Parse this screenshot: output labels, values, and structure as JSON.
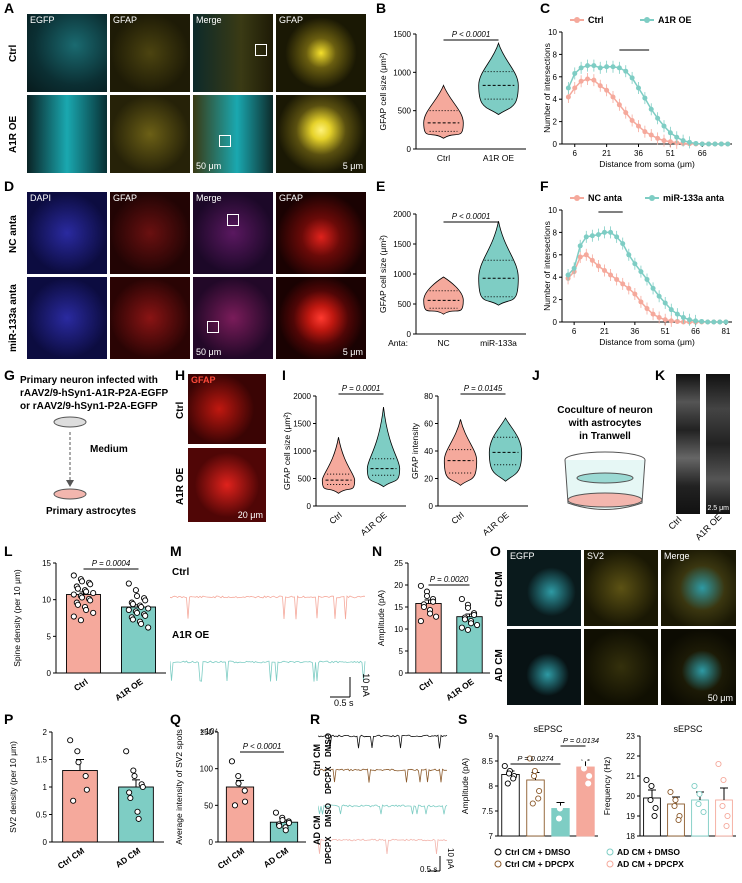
{
  "panels": {
    "A": "A",
    "B": "B",
    "C": "C",
    "D": "D",
    "E": "E",
    "F": "F",
    "G": "G",
    "H": "H",
    "I": "I",
    "J": "J",
    "K": "K",
    "L": "L",
    "M": "M",
    "N": "N",
    "O": "O",
    "P": "P",
    "Q": "Q",
    "R": "R",
    "S": "S"
  },
  "A": {
    "cols": [
      "EGFP",
      "GFAP",
      "Merge",
      "GFAP"
    ],
    "rows": [
      "Ctrl",
      "A1R OE"
    ],
    "scale1": "50 μm",
    "scale2": "5 μm"
  },
  "D": {
    "cols": [
      "DAPI",
      "GFAP",
      "Merge",
      "GFAP"
    ],
    "rows": [
      "NC anta",
      "miR-133a anta"
    ],
    "scale1": "50 μm",
    "scale2": "5 μm"
  },
  "G": {
    "line1": "Primary neuron infected with",
    "line2": "rAAV2/9-hSyn1-A1R-P2A-EGFP",
    "line3": "or rAAV2/9-hSyn1-P2A-EGFP",
    "medium": "Medium",
    "bottom": "Primary astrocytes"
  },
  "H": {
    "label": "GFAP",
    "rows": [
      "Ctrl",
      "A1R OE"
    ],
    "scale": "20 μm"
  },
  "J": {
    "line1": "Coculture of neuron",
    "line2": "with astrocytes",
    "line3": "in Tranwell"
  },
  "K": {
    "labels": [
      "Ctrl",
      "A1R OE"
    ],
    "scale": "2.5 μm"
  },
  "M": {
    "traces": [
      "Ctrl",
      "A1R OE"
    ],
    "scale_t": "0.5 s",
    "scale_a": "10 pA"
  },
  "O": {
    "cols": [
      "EGFP",
      "SV2",
      "Merge"
    ],
    "rows": [
      "Ctrl CM",
      "AD CM"
    ],
    "scale": "50 μm"
  },
  "R": {
    "groups": [
      "Ctrl CM",
      "AD CM"
    ],
    "traces": [
      "DMSO",
      "DPCPX",
      "DMSO",
      "DPCPX"
    ],
    "scale_t": "0.5 s",
    "scale_a": "10 pA"
  },
  "colors": {
    "ctrl": "#f5a99c",
    "oe": "#7ecdc4",
    "egfp": "#3ec9d6",
    "gfap_y": "#e6d22a",
    "gfap_r": "#e0221c",
    "dapi": "#2233cc",
    "brown": "#8b5a2b",
    "black": "#111111"
  },
  "chart_data": [
    {
      "id": "B",
      "type": "violin",
      "ylabel": "GFAP cell size (μm²)",
      "categories": [
        "Ctrl",
        "A1R OE"
      ],
      "ylim": [
        0,
        1500
      ],
      "yticks": [
        0,
        500,
        1000,
        1500
      ],
      "pvalue": "P < 0.0001",
      "medians": [
        340,
        830
      ],
      "q1": [
        230,
        650
      ],
      "q3": [
        500,
        1010
      ],
      "min": [
        140,
        450
      ],
      "max": [
        830,
        1380
      ]
    },
    {
      "id": "C",
      "type": "line",
      "xlabel": "Distance from soma (μm)",
      "ylabel": "Number of intersections",
      "xticks": [
        6,
        21,
        36,
        51,
        66
      ],
      "ylim": [
        0,
        10
      ],
      "yticks": [
        0,
        2,
        4,
        6,
        8,
        10
      ],
      "x": [
        3,
        6,
        9,
        12,
        15,
        18,
        21,
        24,
        27,
        30,
        33,
        36,
        39,
        42,
        45,
        48,
        51,
        54,
        57,
        60,
        63,
        66,
        69,
        72,
        75,
        78
      ],
      "series": [
        {
          "name": "Ctrl",
          "values": [
            4.2,
            5.0,
            5.6,
            5.8,
            5.7,
            5.2,
            4.8,
            4.2,
            3.5,
            2.8,
            2.1,
            1.6,
            1.1,
            0.8,
            0.5,
            0.3,
            0.2,
            0.1,
            0.05,
            0.02,
            0,
            0,
            0,
            0,
            0,
            0
          ]
        },
        {
          "name": "A1R OE",
          "values": [
            5.0,
            6.3,
            6.8,
            7.0,
            7.0,
            6.8,
            6.9,
            6.9,
            6.8,
            6.5,
            5.9,
            5.0,
            4.1,
            3.1,
            2.3,
            1.6,
            1.0,
            0.6,
            0.3,
            0.15,
            0.05,
            0,
            0,
            0,
            0,
            0
          ]
        }
      ]
    },
    {
      "id": "E",
      "type": "violin",
      "ylabel": "GFAP cell size (μm²)",
      "xlabel_prefix": "Anta:",
      "categories": [
        "NC",
        "miR-133a"
      ],
      "ylim": [
        0,
        2000
      ],
      "yticks": [
        0,
        500,
        1000,
        1500,
        2000
      ],
      "pvalue": "P < 0.0001",
      "medians": [
        560,
        930
      ],
      "q1": [
        430,
        620
      ],
      "q3": [
        720,
        1230
      ],
      "min": [
        330,
        480
      ],
      "max": [
        950,
        1880
      ]
    },
    {
      "id": "F",
      "type": "line",
      "xlabel": "Distance from soma (μm)",
      "ylabel": "Number of intersections",
      "xticks": [
        6,
        21,
        36,
        51,
        66,
        81
      ],
      "ylim": [
        0,
        10
      ],
      "yticks": [
        0,
        2,
        4,
        6,
        8,
        10
      ],
      "x": [
        3,
        6,
        9,
        12,
        15,
        18,
        21,
        24,
        27,
        30,
        33,
        36,
        39,
        42,
        45,
        48,
        51,
        54,
        57,
        60,
        63,
        66,
        69,
        72,
        75,
        78,
        81
      ],
      "series": [
        {
          "name": "NC anta",
          "values": [
            3.9,
            4.5,
            5.8,
            6.0,
            5.5,
            5.0,
            4.6,
            4.2,
            3.8,
            3.4,
            3.0,
            2.5,
            1.8,
            1.2,
            0.7,
            0.4,
            0.2,
            0.1,
            0.05,
            0,
            0,
            0,
            0,
            0,
            0,
            0,
            0
          ]
        },
        {
          "name": "miR-133a anta",
          "values": [
            4.2,
            4.8,
            6.8,
            7.6,
            7.7,
            7.8,
            8.0,
            8.0,
            7.6,
            7.0,
            6.0,
            5.2,
            4.5,
            3.8,
            3.0,
            2.3,
            1.7,
            1.1,
            0.7,
            0.4,
            0.2,
            0.1,
            0.05,
            0,
            0,
            0,
            0
          ]
        }
      ]
    },
    {
      "id": "I1",
      "type": "violin",
      "ylabel": "GFAP cell size (μm²)",
      "categories": [
        "Ctrl",
        "A1R OE"
      ],
      "ylim": [
        0,
        2000
      ],
      "yticks": [
        0,
        500,
        1000,
        1500,
        2000
      ],
      "pvalue": "P = 0.0001",
      "medians": [
        470,
        680
      ],
      "q1": [
        390,
        560
      ],
      "q3": [
        580,
        860
      ],
      "min": [
        230,
        350
      ],
      "max": [
        1250,
        1800
      ]
    },
    {
      "id": "I2",
      "type": "violin",
      "ylabel": "GFAP intensity",
      "categories": [
        "Ctrl",
        "A1R OE"
      ],
      "ylim": [
        0,
        80
      ],
      "yticks": [
        0,
        20,
        40,
        60,
        80
      ],
      "pvalue": "P = 0.0145",
      "medians": [
        33,
        39
      ],
      "q1": [
        24,
        30
      ],
      "q3": [
        41,
        50
      ],
      "min": [
        15,
        18
      ],
      "max": [
        63,
        64
      ]
    },
    {
      "id": "L",
      "type": "bar",
      "ylabel": "Spine density (per 10 μm)",
      "categories": [
        "Ctrl",
        "A1R OE"
      ],
      "values": [
        10.7,
        9.0
      ],
      "sem": [
        0.35,
        0.3
      ],
      "ylim": [
        0,
        15
      ],
      "yticks": [
        0,
        5,
        10,
        15
      ],
      "pvalue": "P = 0.0004",
      "points": [
        [
          13.3,
          12.8,
          12.5,
          12.3,
          12.1,
          11.8,
          11.5,
          11.3,
          11.1,
          10.9,
          10.7,
          10.5,
          10.3,
          10.1,
          9.9,
          9.6,
          9.3,
          9.0,
          8.6,
          8.2,
          7.7,
          7.2
        ],
        [
          12.2,
          11.3,
          10.5,
          10.2,
          9.9,
          9.6,
          9.4,
          9.2,
          9.0,
          8.8,
          8.6,
          8.4,
          8.2,
          8.0,
          7.8,
          7.6,
          7.3,
          7.0,
          6.7,
          6.2
        ]
      ]
    },
    {
      "id": "N",
      "type": "bar",
      "ylabel": "Amplitude (pA)",
      "categories": [
        "Ctrl",
        "A1R OE"
      ],
      "values": [
        15.8,
        12.8
      ],
      "sem": [
        0.8,
        0.6
      ],
      "ylim": [
        0,
        25
      ],
      "yticks": [
        0,
        5,
        10,
        15,
        20,
        25
      ],
      "pvalue": "P = 0.0020",
      "points": [
        [
          19.8,
          18.5,
          17.5,
          16.8,
          16.2,
          15.6,
          15.0,
          14.3,
          13.5,
          12.8,
          11.8
        ],
        [
          16.8,
          15.5,
          14.8,
          13.6,
          13.2,
          12.6,
          12.2,
          11.8,
          11.3,
          10.9,
          10.3,
          9.8
        ]
      ]
    },
    {
      "id": "P",
      "type": "bar",
      "ylabel": "SV2 density (per 10 μm)",
      "categories": [
        "Ctrl CM",
        "AD CM"
      ],
      "values": [
        1.3,
        1.0
      ],
      "sem": [
        0.2,
        0.13
      ],
      "ylim": [
        0,
        2.0
      ],
      "yticks": [
        0,
        0.5,
        1.0,
        1.5,
        2.0
      ],
      "points": [
        [
          1.85,
          1.65,
          1.45,
          1.2,
          0.95,
          0.75
        ],
        [
          1.65,
          1.3,
          1.2,
          1.05,
          1.0,
          0.9,
          0.8,
          0.55,
          0.42
        ]
      ]
    },
    {
      "id": "Q",
      "type": "bar",
      "ylabel": "Average intensity of SV2 spots",
      "unit": "×10⁴",
      "categories": [
        "Ctrl CM",
        "AD CM"
      ],
      "values": [
        75,
        27
      ],
      "sem": [
        9,
        3
      ],
      "ylim": [
        0,
        150
      ],
      "yticks": [
        0,
        50,
        100,
        150
      ],
      "pvalue": "P < 0.0001",
      "points": [
        [
          110,
          90,
          80,
          70,
          55,
          50
        ],
        [
          40,
          33,
          30,
          28,
          26,
          24,
          22,
          20,
          16
        ]
      ]
    },
    {
      "id": "S1",
      "type": "bar",
      "title": "sEPSC",
      "ylabel": "Amplitude (pA)",
      "categories": [
        "Ctrl CM + DMSO",
        "Ctrl CM + DPCPX",
        "AD CM + DMSO",
        "AD CM + DPCPX"
      ],
      "values": [
        8.23,
        8.12,
        7.55,
        8.38
      ],
      "sem": [
        0.07,
        0.15,
        0.12,
        0.14
      ],
      "ylim": [
        7.0,
        9.0
      ],
      "yticks": [
        7.0,
        7.5,
        8.0,
        8.5,
        9.0
      ],
      "pvalues": [
        "P = 0.0274",
        "P = 0.0134"
      ],
      "points": [
        [
          8.4,
          8.3,
          8.25,
          8.2,
          8.15,
          8.05
        ],
        [
          8.55,
          8.3,
          8.2,
          7.9,
          7.75,
          7.65
        ],
        [
          7.75,
          7.55,
          7.35
        ],
        [
          8.7,
          8.55,
          8.35,
          8.2,
          8.05
        ]
      ]
    },
    {
      "id": "S2",
      "type": "bar",
      "title": "sEPSC",
      "ylabel": "Frequency (Hz)",
      "categories": [
        "Ctrl CM + DMSO",
        "Ctrl CM + DPCPX",
        "AD CM + DMSO",
        "AD CM + DPCPX"
      ],
      "values": [
        19.9,
        19.6,
        19.8,
        19.8
      ],
      "sem": [
        0.4,
        0.35,
        0.4,
        0.6
      ],
      "ylim": [
        18,
        23
      ],
      "yticks": [
        18,
        19,
        20,
        21,
        22,
        23
      ],
      "points": [
        [
          20.8,
          20.5,
          19.8,
          19.4,
          19.0
        ],
        [
          20.2,
          19.8,
          19.5,
          19.0,
          18.8
        ],
        [
          20.5,
          20.1,
          19.6,
          19.2
        ],
        [
          21.6,
          20.8,
          19.5,
          19.0,
          18.5
        ]
      ]
    }
  ],
  "legends": {
    "C": [
      "Ctrl",
      "A1R OE"
    ],
    "F": [
      "NC anta",
      "miR-133a anta"
    ],
    "S1": [
      "Ctrl CM + DMSO",
      "Ctrl CM + DPCPX"
    ],
    "S2": [
      "AD CM + DMSO",
      "AD CM + DPCPX"
    ]
  }
}
